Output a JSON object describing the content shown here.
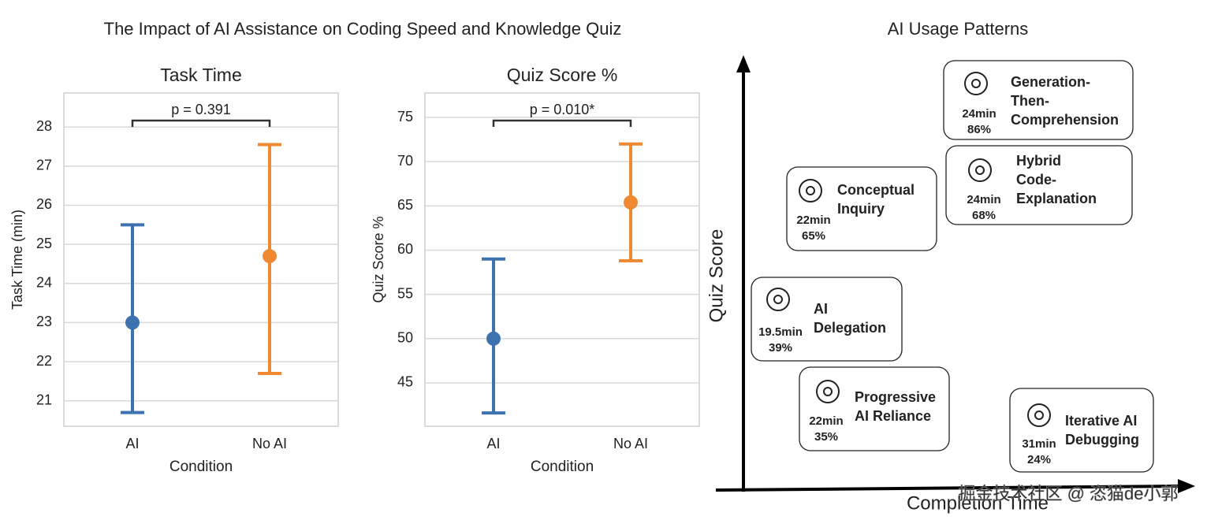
{
  "title": "The Impact of AI Assistance on Coding Speed and Knowledge Quiz",
  "chart_data": [
    {
      "type": "point",
      "title": "Task Time",
      "x_label": "Condition",
      "y_label": "Task Time (min)",
      "categories": [
        "AI",
        "No AI"
      ],
      "colors": [
        "#3d72b0",
        "#ef8a33"
      ],
      "values": [
        23.0,
        24.7
      ],
      "ci_low": [
        20.7,
        21.7
      ],
      "ci_high": [
        25.5,
        27.55
      ],
      "ylim": [
        20.35,
        28.87
      ],
      "yticks": [
        21,
        22,
        23,
        24,
        25,
        26,
        27,
        28
      ],
      "grid": true,
      "annotation": "p = 0.391"
    },
    {
      "type": "point",
      "title": "Quiz Score %",
      "x_label": "Condition",
      "y_label": "Quiz Score %",
      "categories": [
        "AI",
        "No AI"
      ],
      "colors": [
        "#3d72b0",
        "#ef8a33"
      ],
      "values": [
        50.0,
        65.4
      ],
      "ci_low": [
        41.6,
        58.8
      ],
      "ci_high": [
        59.0,
        72.0
      ],
      "ylim": [
        40.1,
        77.76
      ],
      "yticks": [
        45,
        50,
        55,
        60,
        65,
        70,
        75
      ],
      "grid": true,
      "annotation": "p = 0.010*"
    }
  ],
  "usage_patterns": {
    "title": "AI Usage Patterns",
    "y_label": "Quiz Score",
    "x_label": "Completion Time",
    "items": [
      {
        "label_lines": [
          "Generation-",
          "Then-",
          "Comprehension"
        ],
        "time": "24min",
        "score": "86%",
        "color": "#3a7d22"
      },
      {
        "label_lines": [
          "Hybrid",
          "Code-",
          "Explanation"
        ],
        "time": "24min",
        "score": "68%",
        "color": "#3a7d22"
      },
      {
        "label_lines": [
          "Conceptual",
          "Inquiry"
        ],
        "time": "22min",
        "score": "65%",
        "color": "#3a7d22"
      },
      {
        "label_lines": [
          "AI",
          "Delegation"
        ],
        "time": "19.5min",
        "score": "39%",
        "color": "#a01818"
      },
      {
        "label_lines": [
          "Progressive",
          "AI Reliance"
        ],
        "time": "22min",
        "score": "35%",
        "color": "#a01818"
      },
      {
        "label_lines": [
          "Iterative AI",
          "Debugging"
        ],
        "time": "31min",
        "score": "24%",
        "color": "#a01818"
      }
    ],
    "watermark": "掘金技术社区 @ 恣猫de小郭"
  }
}
